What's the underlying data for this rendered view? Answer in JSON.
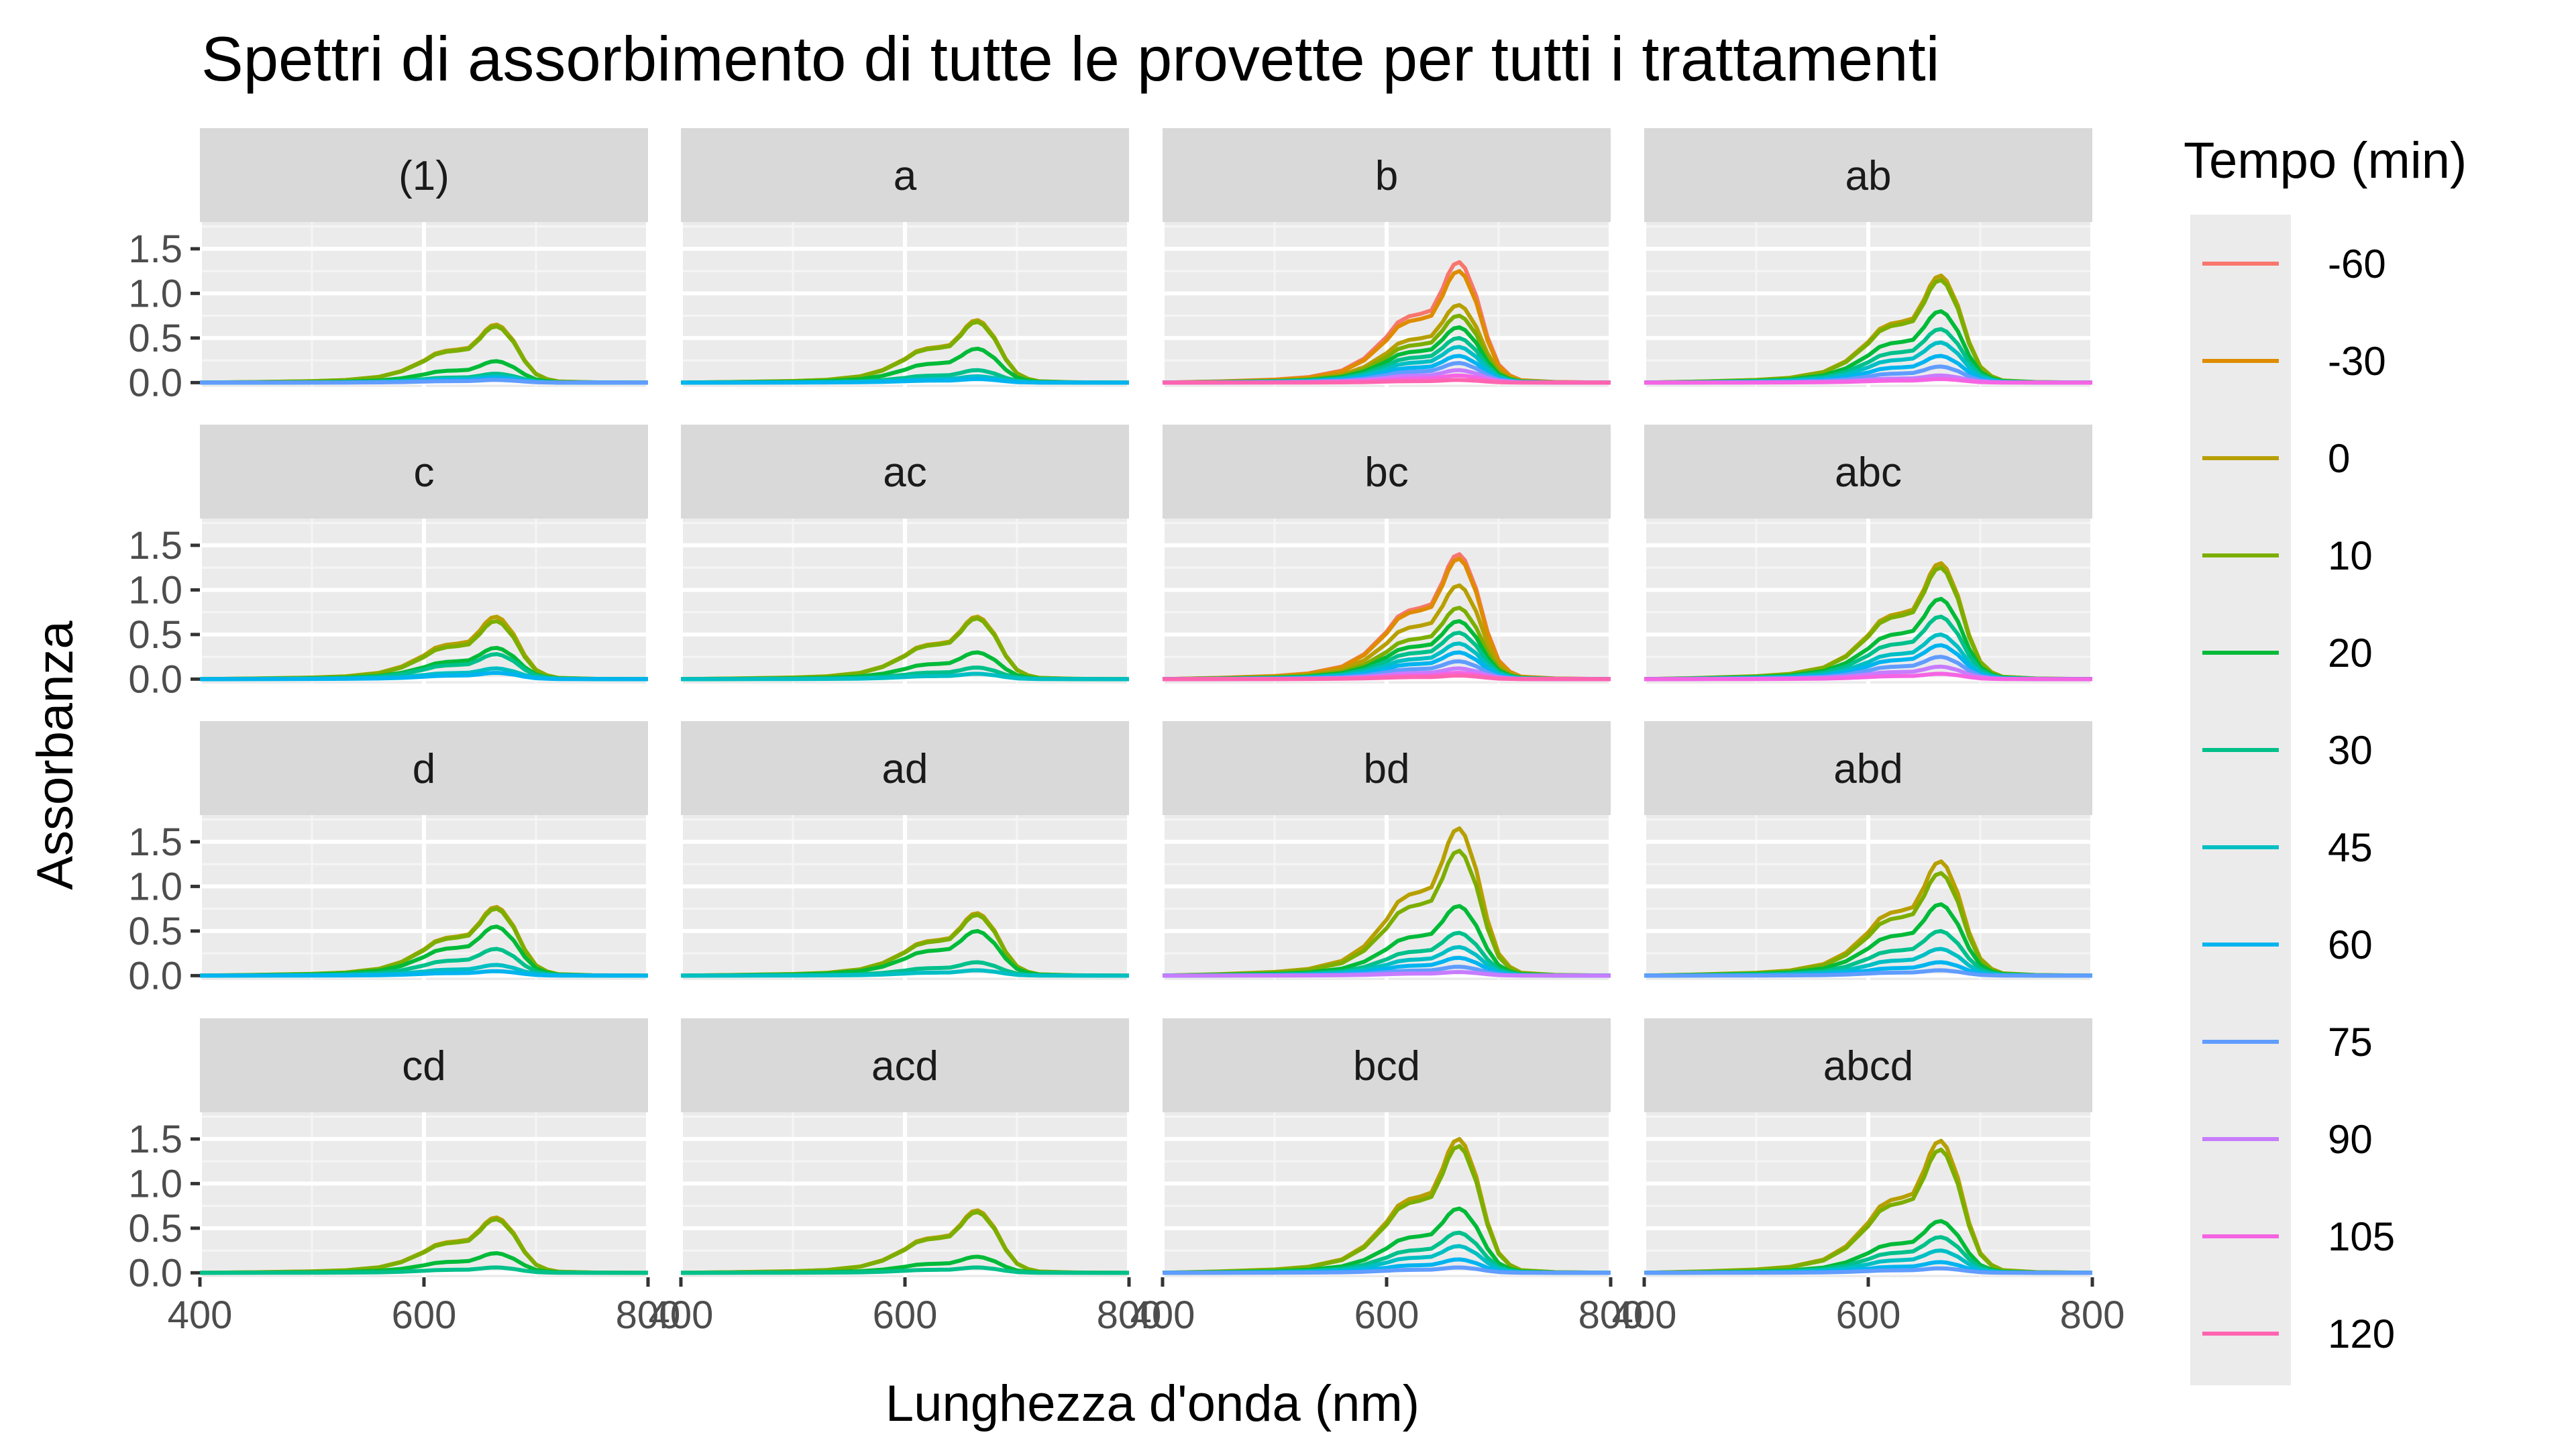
{
  "chart_data": {
    "type": "line",
    "title": "Spettri di assorbimento di tutte le provette per tutti i trattamenti",
    "xlabel": "Lunghezza d'onda (nm)",
    "ylabel": "Assorbanza",
    "xlim": [
      400,
      800
    ],
    "ylim": [
      -0.05,
      1.8
    ],
    "x_ticks": [
      400,
      600,
      800
    ],
    "x_tick_labels": [
      "400",
      "600",
      "800"
    ],
    "y_ticks": [
      0.0,
      0.5,
      1.0,
      1.5
    ],
    "y_tick_labels": [
      "0.0",
      "0.5",
      "1.0",
      "1.5"
    ],
    "grid": true,
    "legend": {
      "title": "Tempo (min)",
      "placement": "right",
      "entries": [
        {
          "label": "-60",
          "color": "#F8766D"
        },
        {
          "label": "-30",
          "color": "#DE8C00"
        },
        {
          "label": "0",
          "color": "#B79F00"
        },
        {
          "label": "10",
          "color": "#7CAE00"
        },
        {
          "label": "20",
          "color": "#00BA38"
        },
        {
          "label": "30",
          "color": "#00C08B"
        },
        {
          "label": "45",
          "color": "#00BFC4"
        },
        {
          "label": "60",
          "color": "#00B4F0"
        },
        {
          "label": "75",
          "color": "#619CFF"
        },
        {
          "label": "90",
          "color": "#C77CFF"
        },
        {
          "label": "105",
          "color": "#F564E3"
        },
        {
          "label": "120",
          "color": "#FF64B0"
        }
      ]
    },
    "facets": [
      {
        "label": "(1)",
        "peaks": [
          0.65,
          0.63,
          0.24,
          0.1,
          0.07,
          0.05,
          0.03
        ]
      },
      {
        "label": "a",
        "peaks": [
          0.7,
          0.68,
          0.38,
          0.14,
          0.07,
          0.04
        ]
      },
      {
        "label": "b",
        "peaks": [
          1.35,
          1.25,
          0.87,
          0.75,
          0.62,
          0.5,
          0.4,
          0.3,
          0.22,
          0.14,
          0.08,
          0.03
        ]
      },
      {
        "label": "ab",
        "peaks": [
          1.2,
          1.15,
          0.8,
          0.6,
          0.45,
          0.3,
          0.18,
          0.08,
          0.04
        ]
      },
      {
        "label": "c",
        "peaks": [
          0.7,
          0.65,
          0.35,
          0.28,
          0.12,
          0.07
        ]
      },
      {
        "label": "ac",
        "peaks": [
          0.7,
          0.68,
          0.3,
          0.13,
          0.06
        ]
      },
      {
        "label": "bc",
        "peaks": [
          1.4,
          1.35,
          1.05,
          0.8,
          0.65,
          0.52,
          0.4,
          0.3,
          0.2,
          0.12,
          0.07,
          0.04
        ]
      },
      {
        "label": "abc",
        "peaks": [
          1.3,
          1.25,
          0.9,
          0.7,
          0.5,
          0.38,
          0.25,
          0.14,
          0.06
        ]
      },
      {
        "label": "d",
        "peaks": [
          0.77,
          0.75,
          0.55,
          0.3,
          0.12,
          0.05
        ]
      },
      {
        "label": "ad",
        "peaks": [
          0.7,
          0.68,
          0.5,
          0.15,
          0.06
        ]
      },
      {
        "label": "bd",
        "peaks": [
          1.65,
          1.4,
          0.78,
          0.48,
          0.32,
          0.2,
          0.1,
          0.04
        ]
      },
      {
        "label": "abd",
        "peaks": [
          1.28,
          1.15,
          0.8,
          0.5,
          0.3,
          0.15,
          0.06
        ]
      },
      {
        "label": "cd",
        "peaks": [
          0.62,
          0.6,
          0.22,
          0.06
        ]
      },
      {
        "label": "acd",
        "peaks": [
          0.7,
          0.68,
          0.18,
          0.06
        ]
      },
      {
        "label": "bcd",
        "peaks": [
          1.5,
          1.42,
          0.72,
          0.45,
          0.3,
          0.15,
          0.06
        ]
      },
      {
        "label": "abcd",
        "peaks": [
          1.48,
          1.38,
          0.58,
          0.4,
          0.25,
          0.12,
          0.05
        ]
      }
    ],
    "curve_shape": {
      "x": [
        400,
        450,
        500,
        530,
        560,
        580,
        600,
        610,
        620,
        630,
        640,
        650,
        655,
        660,
        665,
        670,
        680,
        690,
        700,
        710,
        720,
        750,
        800
      ],
      "y": [
        0.0,
        0.01,
        0.025,
        0.045,
        0.1,
        0.2,
        0.38,
        0.5,
        0.55,
        0.57,
        0.6,
        0.78,
        0.9,
        0.98,
        1.0,
        0.95,
        0.72,
        0.38,
        0.15,
        0.06,
        0.02,
        0.005,
        0.0
      ]
    }
  }
}
